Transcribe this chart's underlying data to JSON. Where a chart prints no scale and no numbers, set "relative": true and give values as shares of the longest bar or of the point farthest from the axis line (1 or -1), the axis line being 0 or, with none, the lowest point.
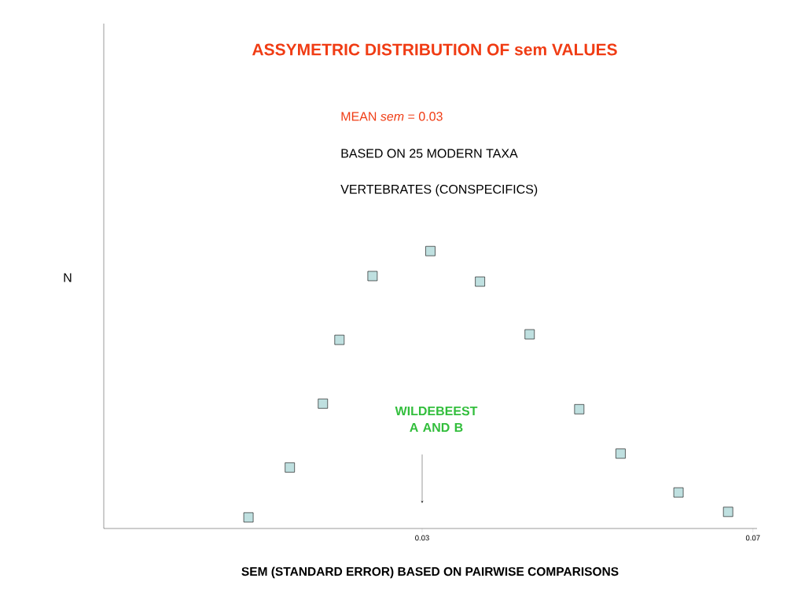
{
  "chart_data": {
    "type": "scatter",
    "title": "ASSYMETRIC DISTRIBUTION OF sem VALUES",
    "xlabel": "SEM (STANDARD ERROR) BASED ON PAIRWISE COMPARISONS",
    "ylabel": "N",
    "annotations": [
      "MEAN *sem* = 0.03",
      "BASED ON 25 MODERN TAXA",
      "VERTEBRATES (CONSPECIFICS)",
      "WILDEBEEST A AND B"
    ],
    "x": [
      0.009,
      0.014,
      0.018,
      0.02,
      0.024,
      0.031,
      0.037,
      0.043,
      0.049,
      0.054,
      0.061,
      0.067
    ],
    "values": [
      0.04,
      0.22,
      0.45,
      0.68,
      0.91,
      1,
      0.89,
      0.7,
      0.43,
      0.27,
      0.13,
      0.06
    ],
    "relative": true,
    "color": "#bfe0e0",
    "marker": "square",
    "xlim": [
      -0.0085,
      0.0705
    ],
    "xticks": [
      0.03,
      0.07
    ],
    "grid": false
  }
}
